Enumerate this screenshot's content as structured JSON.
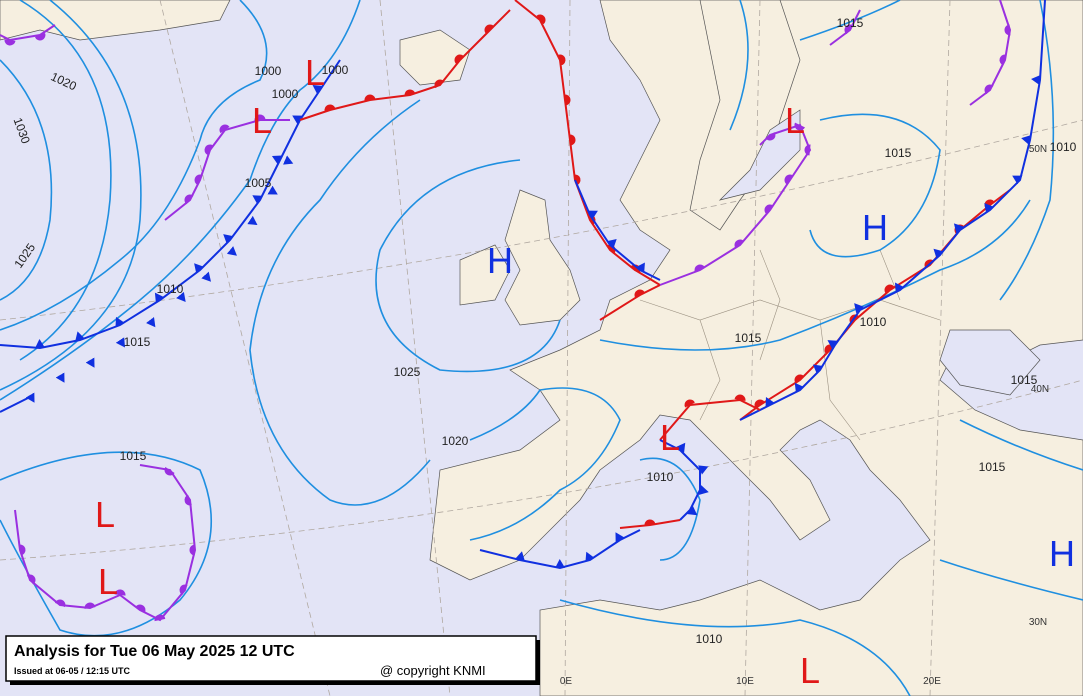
{
  "header": {
    "title": "Analysis for Tue 06 May 2025 12 UTC",
    "issued": "Issued at 06-05 / 12:15 UTC",
    "copyright": "@ copyright KNMI"
  },
  "pressure_centers": [
    "L",
    "L",
    "L",
    "H",
    "H",
    "L",
    "L",
    "L",
    "L",
    "H"
  ],
  "isobar_labels": [
    "1000",
    "1000",
    "1000",
    "1020",
    "1030",
    "1005",
    "1025",
    "1010",
    "1015",
    "1025",
    "1020",
    "1015",
    "1010",
    "1015",
    "1010",
    "1015",
    "1015",
    "1010",
    "1015",
    "1015",
    "1010"
  ],
  "grid_labels": [
    "50N",
    "40N",
    "30N",
    "0E",
    "10E",
    "20E"
  ]
}
